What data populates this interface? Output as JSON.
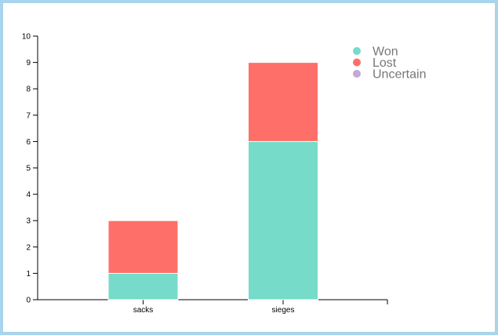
{
  "chart_data": {
    "type": "bar",
    "stacked": true,
    "categories": [
      "sacks",
      "sieges"
    ],
    "series": [
      {
        "name": "Won",
        "values": [
          1,
          6
        ],
        "color": "#76dbc8"
      },
      {
        "name": "Lost",
        "values": [
          2,
          3
        ],
        "color": "#ff6f69"
      },
      {
        "name": "Uncertain",
        "values": [
          0,
          0
        ],
        "color": "#c3a8d8"
      }
    ],
    "ylim": [
      0,
      10
    ],
    "yticks": [
      "0",
      "1",
      "2",
      "3",
      "4",
      "5",
      "6",
      "7",
      "8",
      "9",
      "10"
    ],
    "grid": false,
    "legend_position": "top-right"
  },
  "frame_color": "#a8d4ec"
}
